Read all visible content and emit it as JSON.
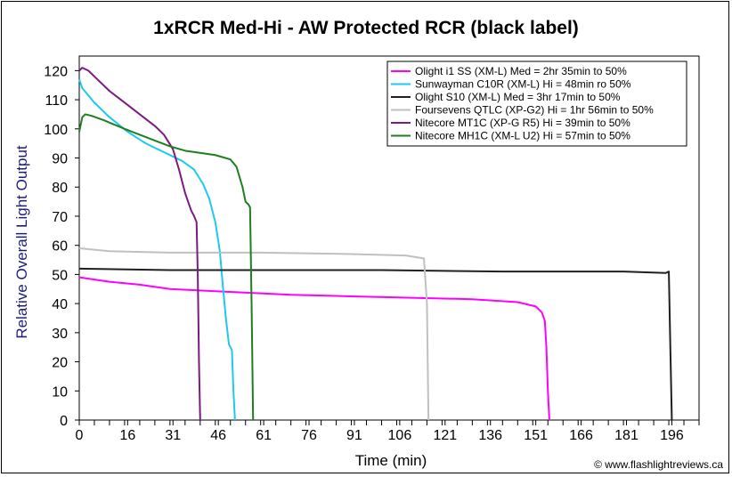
{
  "chart_data": {
    "type": "line",
    "title": "1xRCR Med-Hi - AW Protected RCR (black label)",
    "xlabel": "Time (min)",
    "ylabel": "Relative Overall Light Output",
    "xlim": [
      0,
      205
    ],
    "ylim": [
      0,
      125
    ],
    "xticks": [
      0,
      16,
      31,
      46,
      61,
      76,
      91,
      106,
      121,
      136,
      151,
      166,
      181,
      196
    ],
    "yticks": [
      0,
      10,
      20,
      30,
      40,
      50,
      60,
      70,
      80,
      90,
      100,
      110,
      120
    ],
    "legend_position": "top-right",
    "credit": "© www.flashlightreviews.ca",
    "series": [
      {
        "name": "Olight i1 SS (XM-L) Med = 2hr 35min to 50%",
        "color": "#ff00ff",
        "points": [
          [
            0,
            49
          ],
          [
            10,
            47.5
          ],
          [
            20,
            46.5
          ],
          [
            30,
            45
          ],
          [
            50,
            44
          ],
          [
            70,
            43
          ],
          [
            90,
            42.5
          ],
          [
            110,
            42
          ],
          [
            130,
            41.5
          ],
          [
            145,
            40.5
          ],
          [
            151,
            39
          ],
          [
            153,
            37
          ],
          [
            154,
            34
          ],
          [
            154.5,
            25
          ],
          [
            155,
            10
          ],
          [
            155.5,
            0
          ]
        ]
      },
      {
        "name": "Sunwayman C10R (XM-L) Hi = 48min ro 50%",
        "color": "#1ec8f0",
        "points": [
          [
            0,
            117
          ],
          [
            1,
            114
          ],
          [
            5,
            109
          ],
          [
            10,
            104
          ],
          [
            16,
            99
          ],
          [
            22,
            95
          ],
          [
            28,
            92
          ],
          [
            34,
            89
          ],
          [
            38,
            86
          ],
          [
            41,
            81
          ],
          [
            43,
            76
          ],
          [
            45,
            68
          ],
          [
            46.5,
            58
          ],
          [
            47.5,
            46
          ],
          [
            48.5,
            35
          ],
          [
            49.5,
            26
          ],
          [
            50,
            25
          ],
          [
            50.5,
            24
          ],
          [
            51,
            10
          ],
          [
            51.5,
            0
          ]
        ]
      },
      {
        "name": "Olight S10 (XM-L) Med = 3hr 17min to 50%",
        "color": "#202020",
        "points": [
          [
            0,
            52
          ],
          [
            30,
            51.5
          ],
          [
            60,
            51.5
          ],
          [
            100,
            51.5
          ],
          [
            140,
            51
          ],
          [
            180,
            51
          ],
          [
            194,
            50.5
          ],
          [
            195,
            51
          ],
          [
            195.5,
            25
          ],
          [
            196,
            0
          ]
        ]
      },
      {
        "name": "Foursevens QTLC (XP-G2) Hi = 1hr 56min to 50%",
        "color": "#c0c0c0",
        "points": [
          [
            0,
            59
          ],
          [
            10,
            58
          ],
          [
            30,
            57.5
          ],
          [
            60,
            57.5
          ],
          [
            90,
            57
          ],
          [
            108,
            56.5
          ],
          [
            114,
            55.5
          ],
          [
            115,
            40
          ],
          [
            115.5,
            0
          ]
        ]
      },
      {
        "name": "Nitecore MT1C (XP-G R5) Hi = 39min to 50%",
        "color": "#7b1a80",
        "points": [
          [
            0,
            120
          ],
          [
            1,
            121
          ],
          [
            3,
            120
          ],
          [
            6,
            117
          ],
          [
            10,
            113
          ],
          [
            15,
            109
          ],
          [
            20,
            105
          ],
          [
            25,
            101
          ],
          [
            28,
            98
          ],
          [
            31,
            93
          ],
          [
            33,
            86
          ],
          [
            35,
            78
          ],
          [
            37,
            72
          ],
          [
            38,
            70
          ],
          [
            38.8,
            68
          ],
          [
            39.2,
            50
          ],
          [
            39.6,
            20
          ],
          [
            40,
            0
          ]
        ]
      },
      {
        "name": "Nitecore MH1C (XM-L U2) Hi = 57min to 50%",
        "color": "#1f7e1f",
        "points": [
          [
            0,
            99
          ],
          [
            1,
            104
          ],
          [
            2,
            105
          ],
          [
            4,
            104.5
          ],
          [
            8,
            103
          ],
          [
            15,
            100
          ],
          [
            25,
            96
          ],
          [
            30,
            94
          ],
          [
            35,
            92.5
          ],
          [
            45,
            91
          ],
          [
            50,
            89.5
          ],
          [
            52,
            87
          ],
          [
            54,
            80
          ],
          [
            55,
            75
          ],
          [
            56,
            74
          ],
          [
            56.5,
            73
          ],
          [
            57,
            40
          ],
          [
            57.5,
            0
          ]
        ]
      }
    ]
  }
}
